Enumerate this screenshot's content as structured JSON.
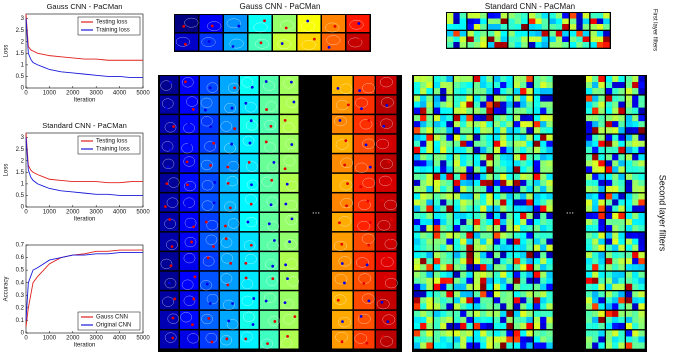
{
  "chart_data": [
    {
      "type": "line",
      "title": "Gauss CNN - PaCMan",
      "x_label": "Iteration",
      "y_label": "Loss",
      "x": [
        0,
        100,
        200,
        300,
        500,
        750,
        1000,
        1500,
        2000,
        2500,
        3000,
        3500,
        4000,
        4500,
        5000
      ],
      "series": [
        {
          "name": "Testing loss",
          "color": "#e0201b",
          "values": [
            3.2,
            1.8,
            1.65,
            1.6,
            1.5,
            1.45,
            1.4,
            1.35,
            1.3,
            1.25,
            1.25,
            1.2,
            1.2,
            1.2,
            1.2
          ]
        },
        {
          "name": "Training loss",
          "color": "#1a1adc",
          "values": [
            3.0,
            1.5,
            1.25,
            1.1,
            1.0,
            0.9,
            0.8,
            0.7,
            0.65,
            0.6,
            0.55,
            0.5,
            0.5,
            0.45,
            0.45
          ]
        }
      ],
      "xlim": [
        0,
        5000
      ],
      "xticks": [
        0,
        1000,
        2000,
        3000,
        4000,
        5000
      ],
      "ylim": [
        0,
        3.2
      ],
      "yticks": [
        0,
        0.5,
        1,
        1.5,
        2,
        2.5,
        3
      ],
      "legend": "upper right"
    },
    {
      "type": "line",
      "title": "Standard CNN - PaCMan",
      "x_label": "Iteration",
      "y_label": "Loss",
      "x": [
        0,
        100,
        200,
        300,
        500,
        750,
        1000,
        1500,
        2000,
        2500,
        3000,
        3500,
        4000,
        4500,
        5000
      ],
      "series": [
        {
          "name": "Testing loss",
          "color": "#e0201b",
          "values": [
            3.2,
            1.8,
            1.6,
            1.5,
            1.4,
            1.3,
            1.2,
            1.15,
            1.1,
            1.1,
            1.1,
            1.05,
            1.05,
            1.1,
            1.1
          ]
        },
        {
          "name": "Training loss",
          "color": "#1a1adc",
          "values": [
            3.0,
            1.6,
            1.3,
            1.15,
            1.0,
            0.9,
            0.8,
            0.7,
            0.65,
            0.6,
            0.55,
            0.55,
            0.5,
            0.5,
            0.5
          ]
        }
      ],
      "xlim": [
        0,
        5000
      ],
      "xticks": [
        0,
        1000,
        2000,
        3000,
        4000,
        5000
      ],
      "ylim": [
        0,
        3.2
      ],
      "yticks": [
        0,
        0.5,
        1,
        1.5,
        2,
        2.5,
        3
      ],
      "legend": "upper right"
    },
    {
      "type": "line",
      "x_label": "Iteration",
      "y_label": "Accuracy",
      "x": [
        0,
        100,
        200,
        300,
        500,
        750,
        1000,
        1500,
        2000,
        2500,
        3000,
        3500,
        4000,
        4500,
        5000
      ],
      "series": [
        {
          "name": "Gauss CNN",
          "color": "#e0201b",
          "values": [
            0.05,
            0.2,
            0.3,
            0.4,
            0.45,
            0.5,
            0.55,
            0.6,
            0.62,
            0.63,
            0.65,
            0.65,
            0.66,
            0.66,
            0.66
          ]
        },
        {
          "name": "Original CNN",
          "color": "#1a1adc",
          "values": [
            0.1,
            0.4,
            0.45,
            0.5,
            0.52,
            0.55,
            0.58,
            0.6,
            0.62,
            0.62,
            0.63,
            0.63,
            0.64,
            0.64,
            0.64
          ]
        }
      ],
      "xlim": [
        0,
        5000
      ],
      "xticks": [
        0,
        1000,
        2000,
        3000,
        4000,
        5000
      ],
      "ylim": [
        0,
        0.7
      ],
      "yticks": [
        0,
        0.1,
        0.2,
        0.3,
        0.4,
        0.5,
        0.6,
        0.7
      ],
      "legend": "lower right"
    }
  ],
  "panels": {
    "gauss_title": "Gauss CNN - PaCMan",
    "standard_title": "Standard CNN - PaCMan",
    "first_layer": "First layer filters",
    "second_layer": "Second layer filters",
    "gauss_ellipsis": "...",
    "standard_ellipsis": "..."
  }
}
